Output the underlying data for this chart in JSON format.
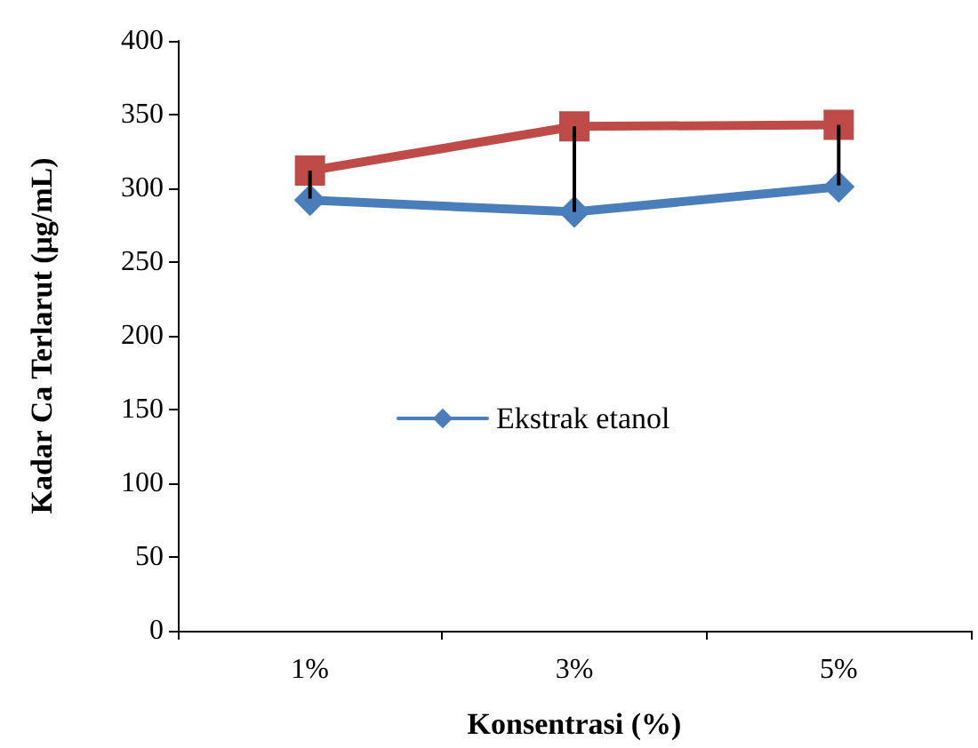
{
  "chart_data": {
    "type": "line",
    "xlabel": "Konsentrasi (%)",
    "ylabel": "Kadar Ca Terlarut (μg/mL)",
    "categories": [
      "1%",
      "3%",
      "5%"
    ],
    "series": [
      {
        "name": "Ekstrak etanol",
        "color": "#4a7ebb",
        "marker": "diamond",
        "values": [
          292,
          284,
          301
        ]
      },
      {
        "color": "#be4b48",
        "marker": "square",
        "values": [
          312,
          342,
          343
        ],
        "errors": [
          [
            293,
            312
          ],
          [
            284,
            342
          ],
          [
            302,
            343
          ]
        ]
      }
    ],
    "ylim": [
      0,
      400
    ],
    "yticks": [
      0,
      50,
      100,
      150,
      200,
      250,
      300,
      350,
      400
    ],
    "grid": false,
    "legend": "center",
    "line_style": "solid"
  }
}
